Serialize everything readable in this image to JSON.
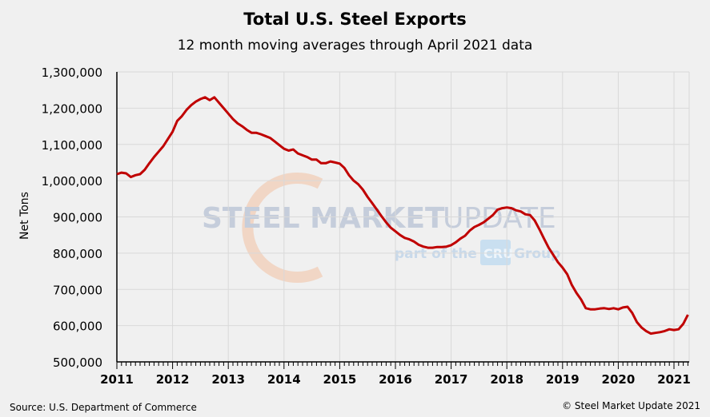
{
  "chart_data": {
    "type": "line",
    "title": "Total U.S. Steel Exports",
    "subtitle": "12 month moving averages through April 2021 data",
    "xlabel": "",
    "ylabel": "Net Tons",
    "ylim": [
      500000,
      1300000
    ],
    "y_ticks": [
      "500,000",
      "600,000",
      "700,000",
      "800,000",
      "900,000",
      "1,000,000",
      "1,100,000",
      "1,200,000",
      "1,300,000"
    ],
    "x_ticks": [
      "2011",
      "2012",
      "2013",
      "2014",
      "2015",
      "2016",
      "2017",
      "2018",
      "2019",
      "2020",
      "2021"
    ],
    "x_range": [
      "2011-01",
      "2021-04"
    ],
    "grid": true,
    "series_color": "#c00000",
    "series": [
      {
        "start": "2011-01",
        "frequency": "monthly",
        "values": [
          1018000,
          1022000,
          1020000,
          1010000,
          1015000,
          1018000,
          1030000,
          1048000,
          1065000,
          1080000,
          1095000,
          1115000,
          1135000,
          1165000,
          1178000,
          1195000,
          1208000,
          1218000,
          1225000,
          1230000,
          1222000,
          1230000,
          1215000,
          1200000,
          1185000,
          1170000,
          1158000,
          1150000,
          1140000,
          1132000,
          1132000,
          1128000,
          1123000,
          1118000,
          1108000,
          1098000,
          1088000,
          1083000,
          1086000,
          1075000,
          1070000,
          1065000,
          1058000,
          1058000,
          1048000,
          1048000,
          1053000,
          1050000,
          1047000,
          1035000,
          1015000,
          1000000,
          990000,
          975000,
          955000,
          938000,
          920000,
          902000,
          885000,
          870000,
          860000,
          850000,
          842000,
          838000,
          832000,
          823000,
          818000,
          815000,
          815000,
          817000,
          817000,
          818000,
          822000,
          830000,
          840000,
          848000,
          862000,
          872000,
          878000,
          885000,
          895000,
          905000,
          920000,
          924000,
          926000,
          924000,
          918000,
          915000,
          907000,
          905000,
          890000,
          866000,
          840000,
          815000,
          795000,
          775000,
          760000,
          742000,
          712000,
          690000,
          672000,
          648000,
          645000,
          645000,
          647000,
          648000,
          646000,
          648000,
          645000,
          650000,
          652000,
          635000,
          610000,
          595000,
          585000,
          578000,
          580000,
          582000,
          585000,
          590000,
          588000,
          590000,
          605000,
          630000
        ]
      }
    ]
  },
  "watermark": {
    "line1_bold": "STEEL MARKET",
    "line1_light": "UPDATE",
    "line2a": "part of the",
    "badge": "CRU",
    "line2b": "Group"
  },
  "footer": {
    "source": "Source: U.S. Department of Commerce",
    "copyright": "© Steel Market Update 2021"
  }
}
